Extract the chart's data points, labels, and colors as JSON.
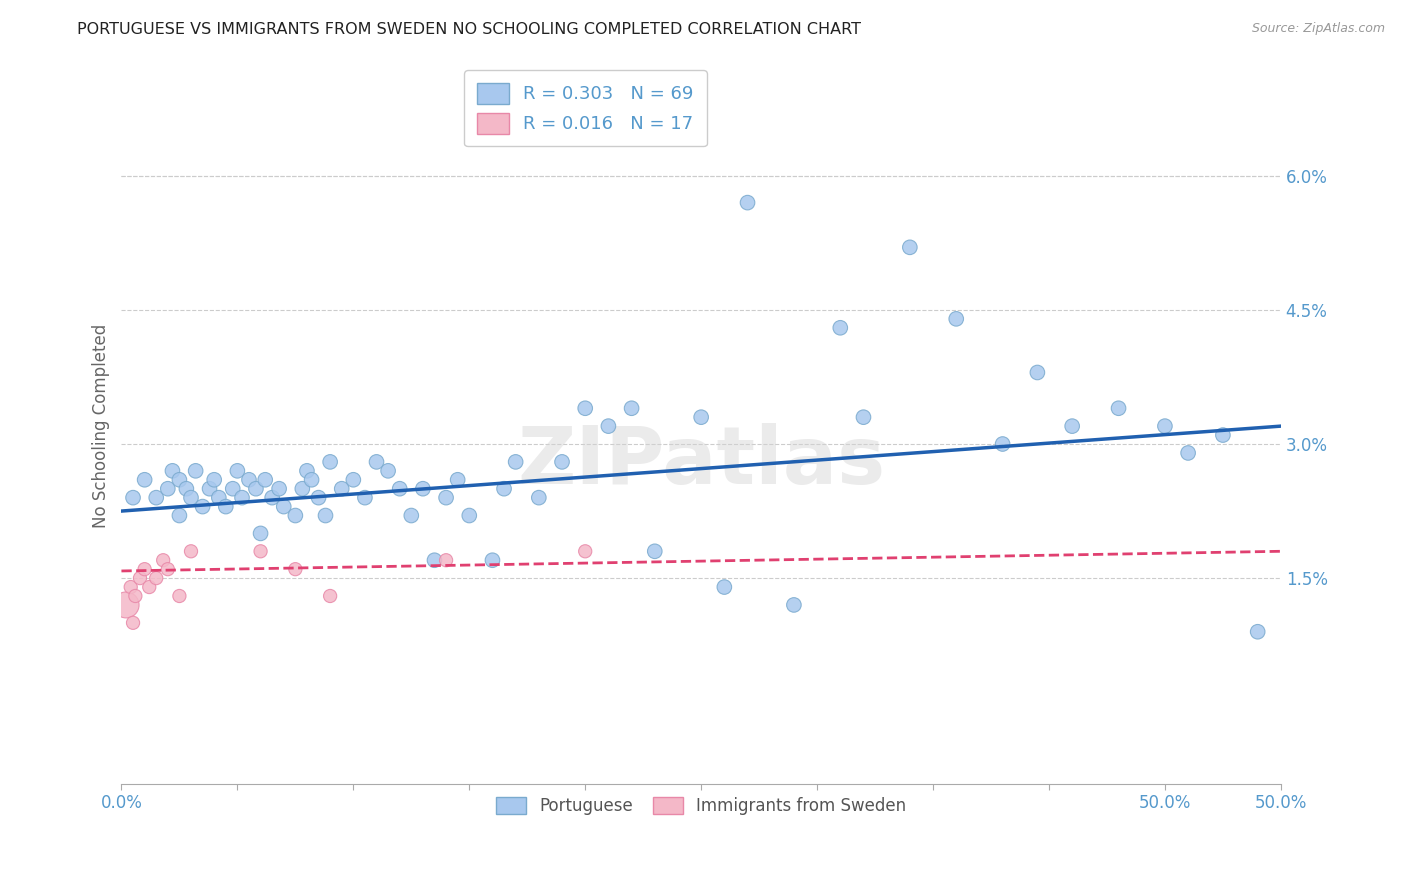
{
  "title": "PORTUGUESE VS IMMIGRANTS FROM SWEDEN NO SCHOOLING COMPLETED CORRELATION CHART",
  "source": "Source: ZipAtlas.com",
  "ylabel": "No Schooling Completed",
  "xlim": [
    0.0,
    0.5
  ],
  "ylim": [
    -0.008,
    0.072
  ],
  "xticks": [
    0.0,
    0.05,
    0.1,
    0.15,
    0.2,
    0.25,
    0.3,
    0.35,
    0.4,
    0.45,
    0.5
  ],
  "xtick_labels_show": {
    "0.0": "0.0%",
    "0.5": "50.0%"
  },
  "yticks_right": [
    0.015,
    0.03,
    0.045,
    0.06
  ],
  "ytick_labels_right": [
    "1.5%",
    "3.0%",
    "4.5%",
    "6.0%"
  ],
  "blue_color": "#a8c8ee",
  "blue_edge_color": "#7aaace",
  "pink_color": "#f4b8c8",
  "pink_edge_color": "#e888a8",
  "blue_line_color": "#2060b0",
  "pink_line_color": "#e04070",
  "axis_color": "#5599cc",
  "grid_color": "#cccccc",
  "blue_x": [
    0.005,
    0.01,
    0.015,
    0.02,
    0.022,
    0.025,
    0.025,
    0.028,
    0.03,
    0.032,
    0.035,
    0.038,
    0.04,
    0.042,
    0.045,
    0.048,
    0.05,
    0.052,
    0.055,
    0.058,
    0.06,
    0.062,
    0.065,
    0.068,
    0.07,
    0.075,
    0.078,
    0.08,
    0.082,
    0.085,
    0.088,
    0.09,
    0.095,
    0.1,
    0.105,
    0.11,
    0.115,
    0.12,
    0.125,
    0.13,
    0.135,
    0.14,
    0.145,
    0.15,
    0.16,
    0.165,
    0.17,
    0.18,
    0.19,
    0.2,
    0.21,
    0.22,
    0.23,
    0.25,
    0.26,
    0.27,
    0.29,
    0.31,
    0.32,
    0.34,
    0.36,
    0.38,
    0.395,
    0.41,
    0.43,
    0.45,
    0.46,
    0.475,
    0.49
  ],
  "blue_y": [
    0.024,
    0.026,
    0.024,
    0.025,
    0.027,
    0.022,
    0.026,
    0.025,
    0.024,
    0.027,
    0.023,
    0.025,
    0.026,
    0.024,
    0.023,
    0.025,
    0.027,
    0.024,
    0.026,
    0.025,
    0.02,
    0.026,
    0.024,
    0.025,
    0.023,
    0.022,
    0.025,
    0.027,
    0.026,
    0.024,
    0.022,
    0.028,
    0.025,
    0.026,
    0.024,
    0.028,
    0.027,
    0.025,
    0.022,
    0.025,
    0.017,
    0.024,
    0.026,
    0.022,
    0.017,
    0.025,
    0.028,
    0.024,
    0.028,
    0.034,
    0.032,
    0.034,
    0.018,
    0.033,
    0.014,
    0.057,
    0.012,
    0.043,
    0.033,
    0.052,
    0.044,
    0.03,
    0.038,
    0.032,
    0.034,
    0.032,
    0.029,
    0.031,
    0.009
  ],
  "pink_x": [
    0.002,
    0.004,
    0.005,
    0.006,
    0.008,
    0.01,
    0.012,
    0.015,
    0.018,
    0.02,
    0.025,
    0.03,
    0.06,
    0.075,
    0.09,
    0.14,
    0.2
  ],
  "pink_y": [
    0.012,
    0.014,
    0.01,
    0.013,
    0.015,
    0.016,
    0.014,
    0.015,
    0.017,
    0.016,
    0.013,
    0.018,
    0.018,
    0.016,
    0.013,
    0.017,
    0.018
  ],
  "pink_large_idx": 0,
  "blue_trend_x0": 0.0,
  "blue_trend_y0": 0.0225,
  "blue_trend_x1": 0.5,
  "blue_trend_y1": 0.032,
  "pink_trend_x0": 0.0,
  "pink_trend_y0": 0.0158,
  "pink_trend_x1": 0.5,
  "pink_trend_y1": 0.018
}
